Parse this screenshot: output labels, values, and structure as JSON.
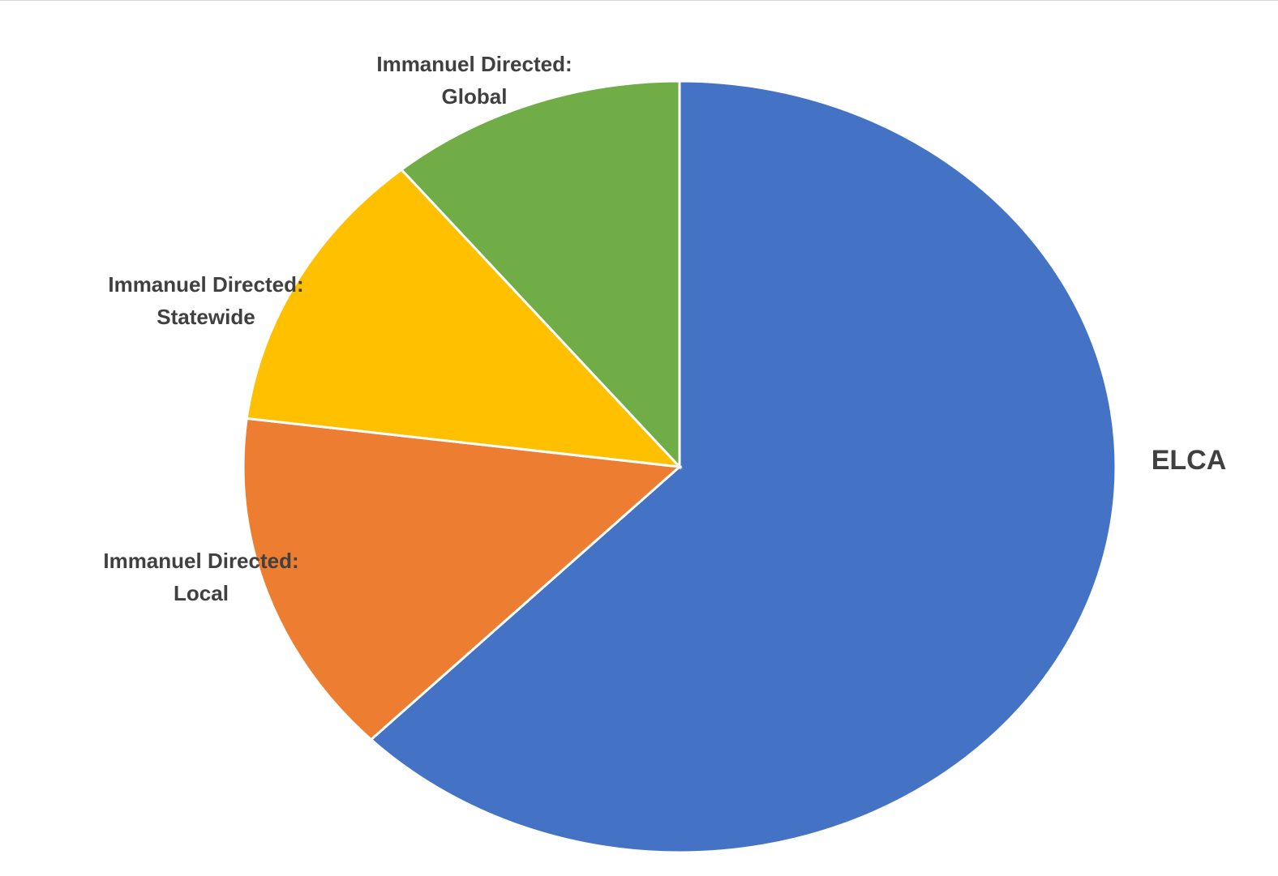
{
  "chart_data": {
    "type": "pie",
    "title": "",
    "start_angle_deg": 0,
    "direction": "clockwise",
    "slices": [
      {
        "label": "ELCA",
        "value": 62.5,
        "color": "#4472C4"
      },
      {
        "label": "Immanuel Directed: Local",
        "value": 14.5,
        "color": "#ED7D31"
      },
      {
        "label": "Immanuel Directed: Statewide",
        "value": 12.0,
        "color": "#FFC000"
      },
      {
        "label": "Immanuel Directed: Global",
        "value": 11.0,
        "color": "#70AD47"
      }
    ],
    "legend": "none",
    "data_labels": [
      {
        "lines": [
          "ELCA"
        ]
      },
      {
        "lines": [
          "Immanuel Directed:",
          "Local"
        ]
      },
      {
        "lines": [
          "Immanuel Directed:",
          "Statewide"
        ]
      },
      {
        "lines": [
          "Immanuel Directed:",
          "Global"
        ]
      }
    ]
  }
}
